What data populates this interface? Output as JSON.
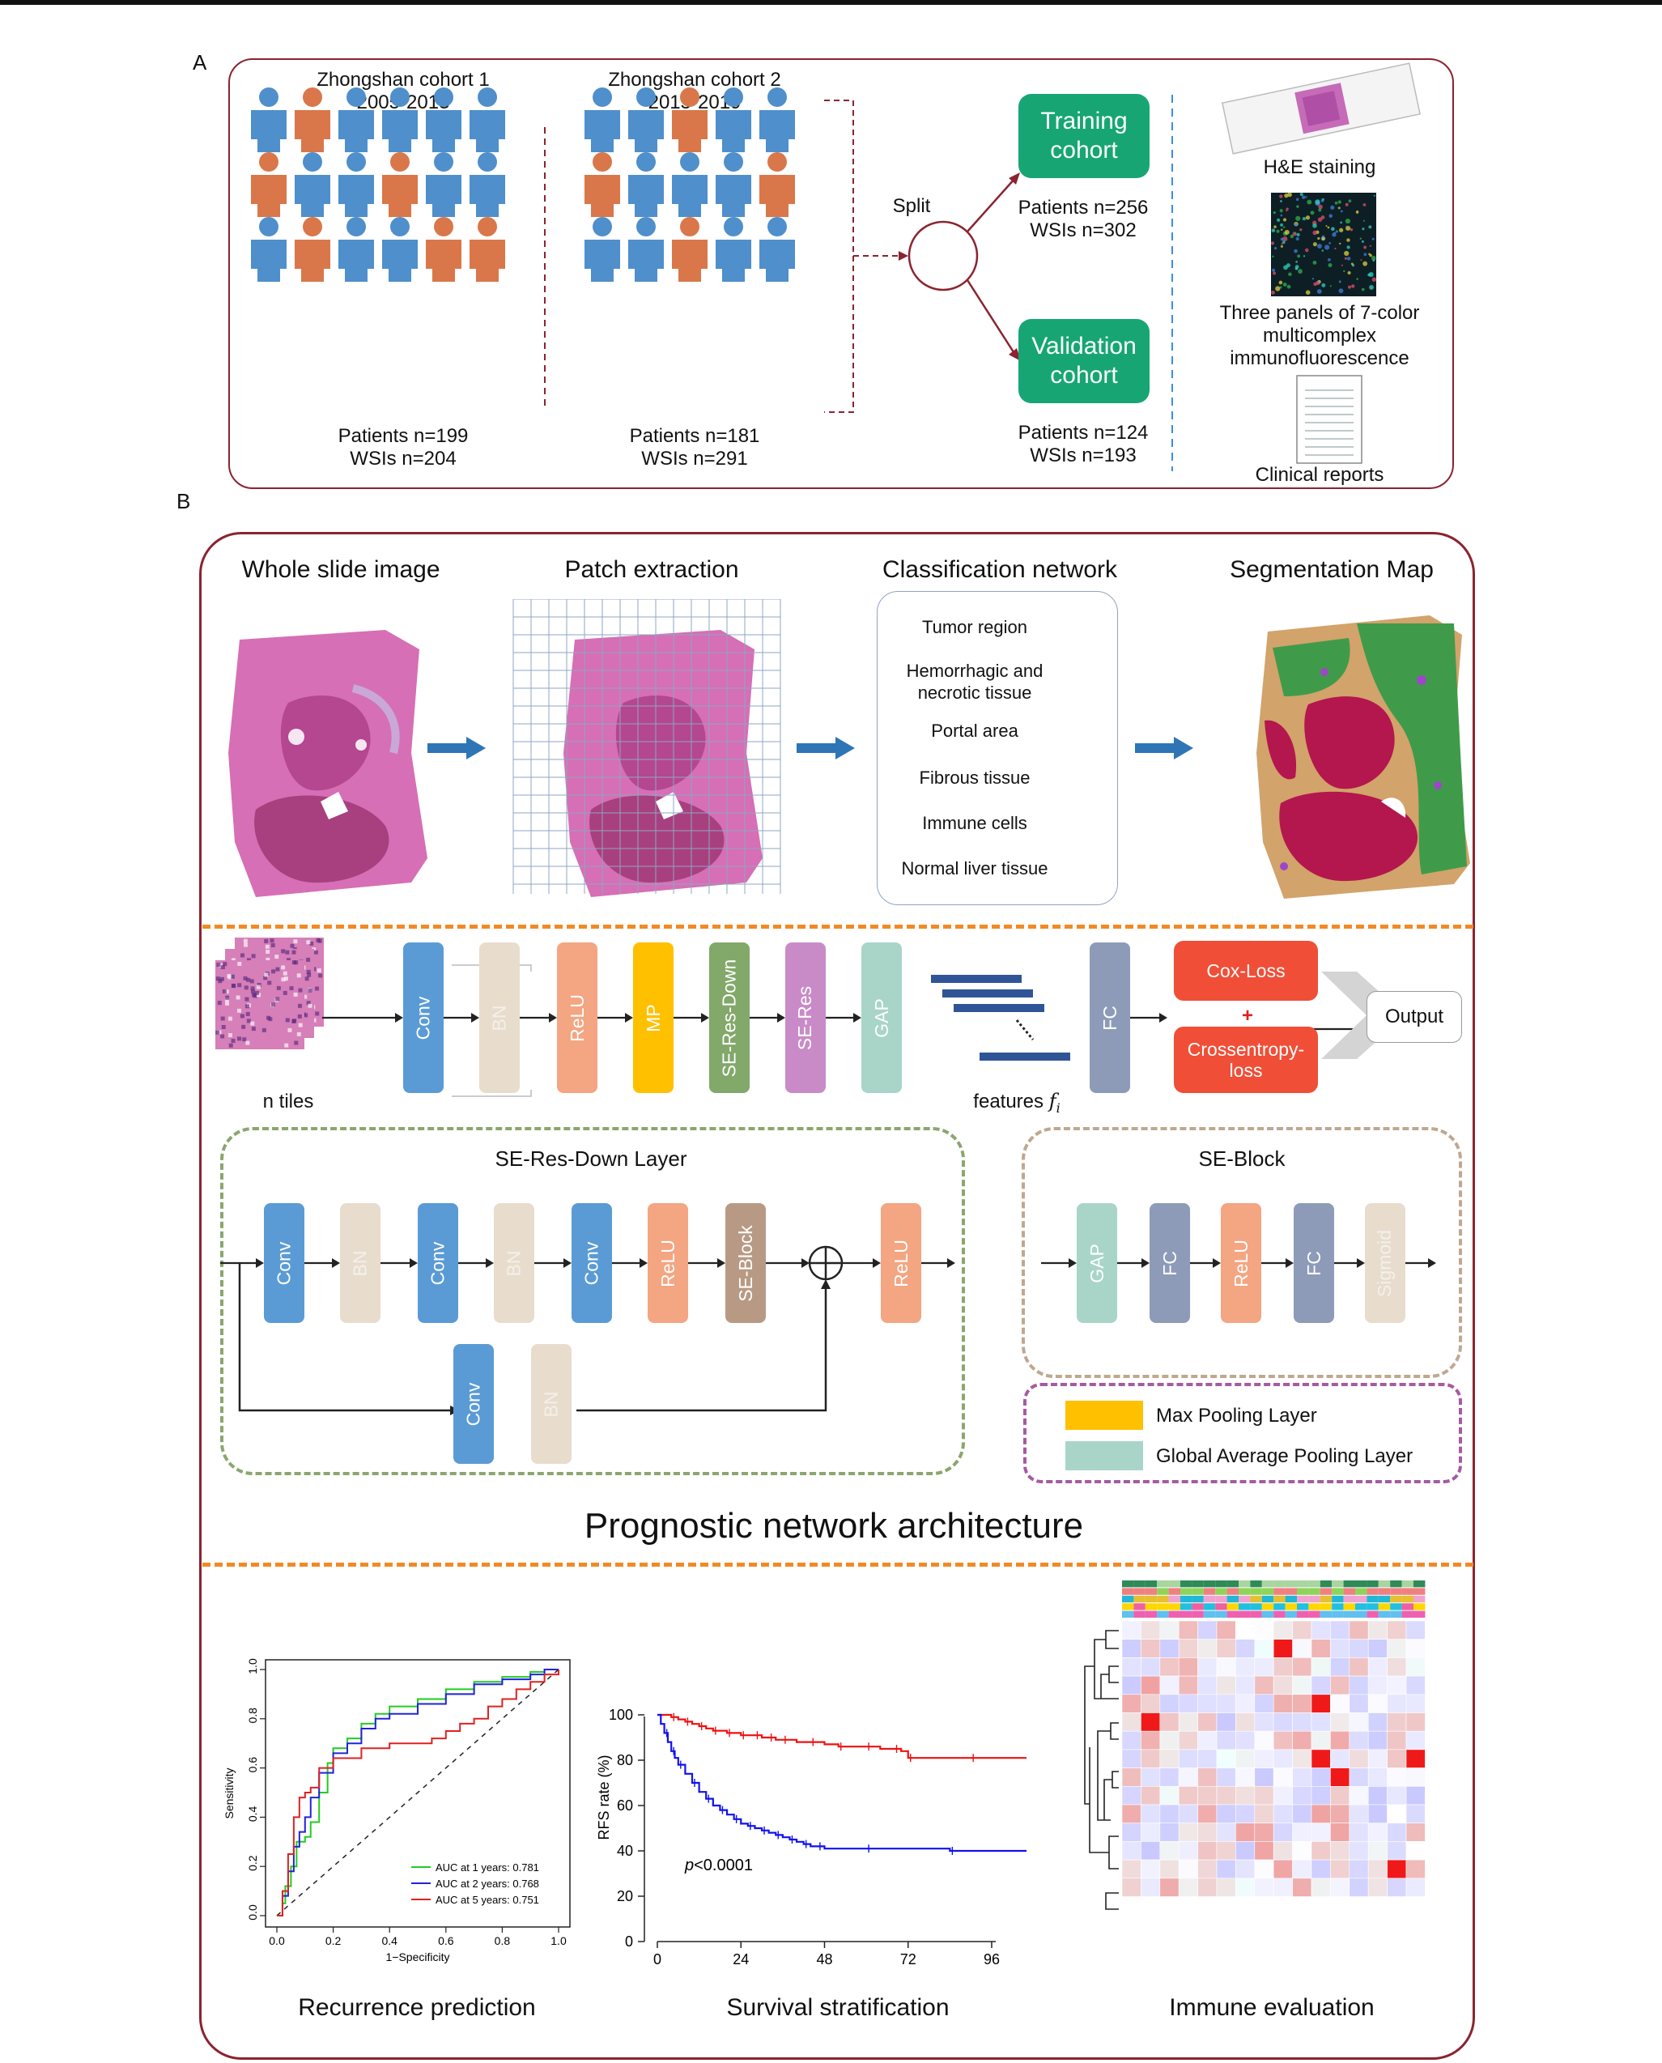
{
  "panel_a": {
    "letter": "A",
    "cohort1": {
      "title": "Zhongshan cohort 1",
      "years": "2005-2013",
      "patients": "Patients n=199",
      "wsis": "WSIs n=204",
      "rows": [
        [
          "blue",
          "orange",
          "blue",
          "blue",
          "blue",
          "blue"
        ],
        [
          "orange",
          "blue",
          "blue",
          "orange",
          "blue",
          "blue"
        ],
        [
          "blue",
          "orange",
          "blue",
          "blue",
          "orange",
          "orange"
        ]
      ]
    },
    "cohort2": {
      "title": "Zhongshan cohort 2",
      "years": "2015-2019",
      "patients": "Patients n=181",
      "wsis": "WSIs n=291",
      "rows": [
        [
          "blue",
          "blue",
          "orange",
          "blue",
          "blue"
        ],
        [
          "orange",
          "blue",
          "blue",
          "blue",
          "orange"
        ],
        [
          "blue",
          "blue",
          "orange",
          "blue",
          "blue"
        ]
      ]
    },
    "split_label": "Split",
    "training": {
      "label_line1": "Training",
      "label_line2": "cohort",
      "patients": "Patients n=256",
      "wsis": "WSIs n=302"
    },
    "validation": {
      "label_line1": "Validation",
      "label_line2": "cohort",
      "patients": "Patients n=124",
      "wsis": "WSIs n=193"
    },
    "data_types": {
      "he": "H&E staining",
      "if_line1": "Three panels of 7-color",
      "if_line2": "multicomplex",
      "if_line3": "immunofluorescence",
      "clinical": "Clinical reports"
    },
    "colors": {
      "person_blue": "#4f8fcb",
      "person_orange": "#d9774a",
      "cohort_green": "#17a673",
      "frame": "#8b2330"
    }
  },
  "panel_b": {
    "letter": "B",
    "pipeline": {
      "wsi_title": "Whole slide image",
      "patch_title": "Patch extraction",
      "class_title": "Classification network",
      "seg_title": "Segmentation Map",
      "classes": [
        {
          "line1": "Tumor region",
          "line2": ""
        },
        {
          "line1": "Hemorrhagic and",
          "line2": "necrotic tissue"
        },
        {
          "line1": "Portal area",
          "line2": ""
        },
        {
          "line1": "Fibrous tissue",
          "line2": ""
        },
        {
          "line1": "Immune cells",
          "line2": ""
        },
        {
          "line1": "Normal liver tissue",
          "line2": ""
        }
      ]
    },
    "network": {
      "tiles_label": "n tiles",
      "features_label": "features",
      "features_symbol": "f",
      "features_sub": "i",
      "blocks": [
        {
          "label": "Conv",
          "color": "#5b9bd5"
        },
        {
          "label": "BN",
          "color": "#e8dccd"
        },
        {
          "label": "ReLU",
          "color": "#f4a582"
        },
        {
          "label": "MP",
          "color": "#ffc000"
        },
        {
          "label": "SE-Res-Down",
          "color": "#82a86a"
        },
        {
          "label": "SE-Res",
          "color": "#c98bc7"
        },
        {
          "label": "GAP",
          "color": "#a8d5c8"
        }
      ],
      "fc_label": "FC",
      "cox_label": "Cox-Loss",
      "plus": "+",
      "ce_line1": "Crossentropy-",
      "ce_line2": "loss",
      "output_label": "Output"
    },
    "se_res_down": {
      "title": "SE-Res-Down Layer",
      "main": [
        {
          "label": "Conv",
          "color": "#5b9bd5"
        },
        {
          "label": "BN",
          "color": "#e8dccd"
        },
        {
          "label": "Conv",
          "color": "#5b9bd5"
        },
        {
          "label": "BN",
          "color": "#e8dccd"
        },
        {
          "label": "Conv",
          "color": "#5b9bd5"
        },
        {
          "label": "ReLU",
          "color": "#f4a582"
        },
        {
          "label": "SE-Block",
          "color": "#b89a84"
        }
      ],
      "after": {
        "label": "ReLU",
        "color": "#f4a582"
      },
      "shortcut": [
        {
          "label": "Conv",
          "color": "#5b9bd5"
        },
        {
          "label": "BN",
          "color": "#e8dccd"
        }
      ]
    },
    "se_block": {
      "title": "SE-Block",
      "blocks": [
        {
          "label": "GAP",
          "color": "#a8d5c8"
        },
        {
          "label": "FC",
          "color": "#8e9bb8"
        },
        {
          "label": "ReLU",
          "color": "#f4a582"
        },
        {
          "label": "FC",
          "color": "#8e9bb8"
        },
        {
          "label": "Sigmoid",
          "color": "#e8dccd"
        }
      ]
    },
    "legend": [
      {
        "label": "Max Pooling Layer",
        "color": "#ffc000"
      },
      {
        "label": "Global Average Pooling Layer",
        "color": "#a8d5c8"
      }
    ],
    "architecture_title": "Prognostic network architecture",
    "bottom_titles": {
      "roc": "Recurrence prediction",
      "km": "Survival stratification",
      "heat": "Immune evaluation"
    }
  },
  "chart_data": [
    {
      "type": "line",
      "xlabel": "1−Specificity",
      "ylabel": "Sensitivity",
      "xlim": [
        0,
        1
      ],
      "ylim": [
        0,
        1
      ],
      "xticks": [
        "0.0",
        "0.2",
        "0.4",
        "0.6",
        "0.8",
        "1.0"
      ],
      "yticks": [
        "0.0",
        "0.2",
        "0.4",
        "0.6",
        "0.8",
        "1.0"
      ],
      "legend_position": "bottom-right",
      "series": [
        {
          "name": "AUC at 1 years: 0.781",
          "color": "#22cc22",
          "x": [
            0,
            0.02,
            0.03,
            0.05,
            0.07,
            0.1,
            0.12,
            0.15,
            0.18,
            0.2,
            0.25,
            0.3,
            0.35,
            0.4,
            0.5,
            0.6,
            0.7,
            0.8,
            0.9,
            0.95,
            1
          ],
          "y": [
            0,
            0.05,
            0.12,
            0.2,
            0.3,
            0.32,
            0.38,
            0.5,
            0.62,
            0.68,
            0.72,
            0.78,
            0.82,
            0.85,
            0.88,
            0.92,
            0.95,
            0.97,
            0.99,
            1,
            1
          ]
        },
        {
          "name": "AUC at 2 years: 0.768",
          "color": "#2222dd",
          "x": [
            0,
            0.02,
            0.04,
            0.06,
            0.08,
            0.1,
            0.12,
            0.15,
            0.2,
            0.25,
            0.3,
            0.35,
            0.4,
            0.5,
            0.6,
            0.7,
            0.8,
            0.9,
            0.95,
            1
          ],
          "y": [
            0,
            0.08,
            0.18,
            0.28,
            0.34,
            0.4,
            0.48,
            0.58,
            0.66,
            0.7,
            0.76,
            0.8,
            0.82,
            0.86,
            0.9,
            0.94,
            0.96,
            0.98,
            1,
            1
          ]
        },
        {
          "name": "AUC at 5 years: 0.751",
          "color": "#dd2222",
          "x": [
            0,
            0.02,
            0.04,
            0.06,
            0.08,
            0.1,
            0.12,
            0.15,
            0.2,
            0.3,
            0.4,
            0.5,
            0.55,
            0.6,
            0.65,
            0.7,
            0.75,
            0.8,
            0.85,
            0.9,
            0.95,
            1
          ],
          "y": [
            0,
            0.1,
            0.25,
            0.4,
            0.48,
            0.5,
            0.52,
            0.6,
            0.64,
            0.68,
            0.7,
            0.7,
            0.72,
            0.75,
            0.78,
            0.8,
            0.85,
            0.88,
            0.92,
            0.95,
            0.98,
            1
          ]
        }
      ]
    },
    {
      "type": "line",
      "xlabel": "",
      "ylabel": "RFS rate (%)",
      "xlim": [
        0,
        106
      ],
      "ylim": [
        0,
        105
      ],
      "xticks": [
        "0",
        "24",
        "48",
        "72",
        "96"
      ],
      "yticks": [
        "0",
        "20",
        "40",
        "60",
        "80",
        "100"
      ],
      "annotation_symbol": "p",
      "annotation_rest": "<0.0001",
      "series": [
        {
          "color": "#ee1111",
          "x": [
            0,
            2,
            4,
            6,
            8,
            10,
            12,
            14,
            16,
            18,
            20,
            22,
            24,
            26,
            28,
            30,
            32,
            34,
            36,
            40,
            44,
            48,
            52,
            56,
            60,
            64,
            68,
            70,
            72,
            80,
            90,
            106
          ],
          "y": [
            100,
            100,
            99,
            98,
            97,
            96,
            95,
            94,
            93,
            93,
            92,
            92,
            91,
            91,
            91,
            90,
            90,
            89,
            89,
            88,
            88,
            87,
            86,
            86,
            86,
            85,
            85,
            84,
            81,
            81,
            81,
            81
          ]
        },
        {
          "color": "#1111ee",
          "x": [
            0,
            1,
            2,
            3,
            4,
            5,
            6,
            8,
            10,
            12,
            14,
            16,
            18,
            20,
            22,
            24,
            26,
            28,
            30,
            32,
            34,
            36,
            38,
            40,
            42,
            44,
            46,
            48,
            60,
            72,
            84,
            106
          ],
          "y": [
            100,
            96,
            92,
            88,
            84,
            81,
            78,
            74,
            70,
            66,
            63,
            60,
            58,
            56,
            54,
            52,
            51,
            50,
            49,
            48,
            47,
            46,
            45,
            44,
            43,
            42,
            42,
            41,
            41,
            41,
            40,
            40
          ]
        }
      ]
    }
  ]
}
